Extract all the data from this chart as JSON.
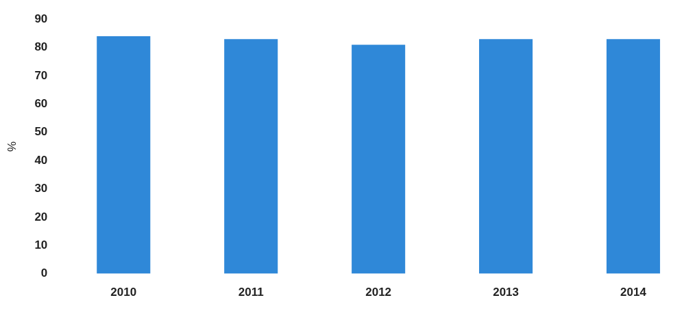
{
  "chart_data": {
    "type": "bar",
    "ylabel": "%",
    "categories": [
      "2010",
      "2011",
      "2012",
      "2013",
      "2014"
    ],
    "values": [
      84,
      83,
      81,
      83,
      83
    ],
    "color": "#2f88d8",
    "ylim": [
      0,
      90
    ],
    "yticks": [
      0,
      10,
      20,
      30,
      40,
      50,
      60,
      70,
      80,
      90
    ],
    "grid": false,
    "legend": false
  }
}
